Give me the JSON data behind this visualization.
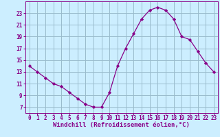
{
  "x": [
    0,
    1,
    2,
    3,
    4,
    5,
    6,
    7,
    8,
    9,
    10,
    11,
    12,
    13,
    14,
    15,
    16,
    17,
    18,
    19,
    20,
    21,
    22,
    23
  ],
  "y": [
    14,
    13,
    12,
    11,
    10.5,
    9.5,
    8.5,
    7.5,
    7,
    7,
    9.5,
    14,
    17,
    19.5,
    22,
    23.5,
    24,
    23.5,
    22,
    19,
    18.5,
    16.5,
    14.5,
    13
  ],
  "line_color": "#880088",
  "marker": "D",
  "marker_size": 2.2,
  "bg_color": "#cceeff",
  "grid_color": "#99bbcc",
  "xlabel": "Windchill (Refroidissement éolien,°C)",
  "xlabel_color": "#880088",
  "xlabel_fontsize": 6.5,
  "tick_color": "#880088",
  "tick_fontsize": 5.5,
  "xlim": [
    -0.5,
    23.5
  ],
  "ylim": [
    6,
    25
  ],
  "yticks": [
    7,
    9,
    11,
    13,
    15,
    17,
    19,
    21,
    23
  ],
  "xticks": [
    0,
    1,
    2,
    3,
    4,
    5,
    6,
    7,
    8,
    9,
    10,
    11,
    12,
    13,
    14,
    15,
    16,
    17,
    18,
    19,
    20,
    21,
    22,
    23
  ]
}
